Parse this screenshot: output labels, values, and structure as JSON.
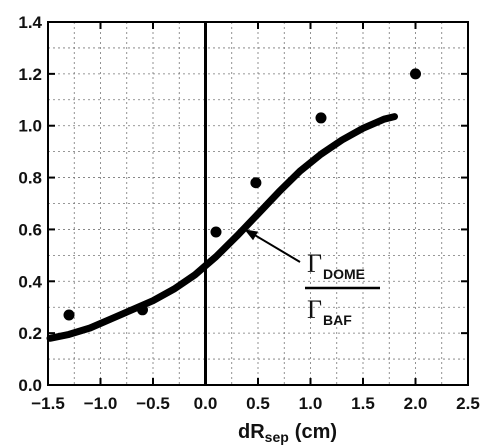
{
  "chart_data": {
    "type": "scatter",
    "xlabel_main": "dR",
    "xlabel_sub": "sep",
    "xlabel_unit": "(cm)",
    "ylabel": "",
    "xlim": [
      -1.5,
      2.5
    ],
    "ylim": [
      0.0,
      1.4
    ],
    "x_ticks": [
      -1.5,
      -1.0,
      -0.5,
      0.0,
      0.5,
      1.0,
      1.5,
      2.0,
      2.5
    ],
    "x_tick_labels": [
      "−1.5",
      "−1.0",
      "−0.5",
      "0.0",
      "0.5",
      "1.0",
      "1.5",
      "2.0",
      "2.5"
    ],
    "y_ticks": [
      0.0,
      0.2,
      0.4,
      0.6,
      0.8,
      1.0,
      1.2,
      1.4
    ],
    "y_tick_labels": [
      "0.0",
      "0.2",
      "0.4",
      "0.6",
      "0.8",
      "1.0",
      "1.2",
      "1.4"
    ],
    "grid": true,
    "vertical_reference_line_x": 0.0,
    "series": [
      {
        "kind": "points",
        "x": [
          -1.3,
          -0.6,
          0.1,
          0.48,
          1.1,
          2.0
        ],
        "y": [
          0.27,
          0.29,
          0.59,
          0.78,
          1.03,
          1.2
        ]
      },
      {
        "kind": "curve",
        "x": [
          -1.7,
          -1.5,
          -1.3,
          -1.1,
          -0.9,
          -0.7,
          -0.5,
          -0.3,
          -0.1,
          0.0,
          0.1,
          0.3,
          0.5,
          0.7,
          0.9,
          1.1,
          1.3,
          1.5,
          1.7,
          1.8
        ],
        "y": [
          0.18,
          0.18,
          0.195,
          0.22,
          0.255,
          0.29,
          0.325,
          0.37,
          0.425,
          0.46,
          0.495,
          0.575,
          0.66,
          0.745,
          0.825,
          0.89,
          0.945,
          0.99,
          1.025,
          1.035
        ]
      }
    ],
    "annotation": {
      "symbol": "Γ",
      "numerator_sub": "DOME",
      "denominator_sub": "BAF",
      "arrow_target": [
        0.37,
        0.6
      ]
    }
  }
}
